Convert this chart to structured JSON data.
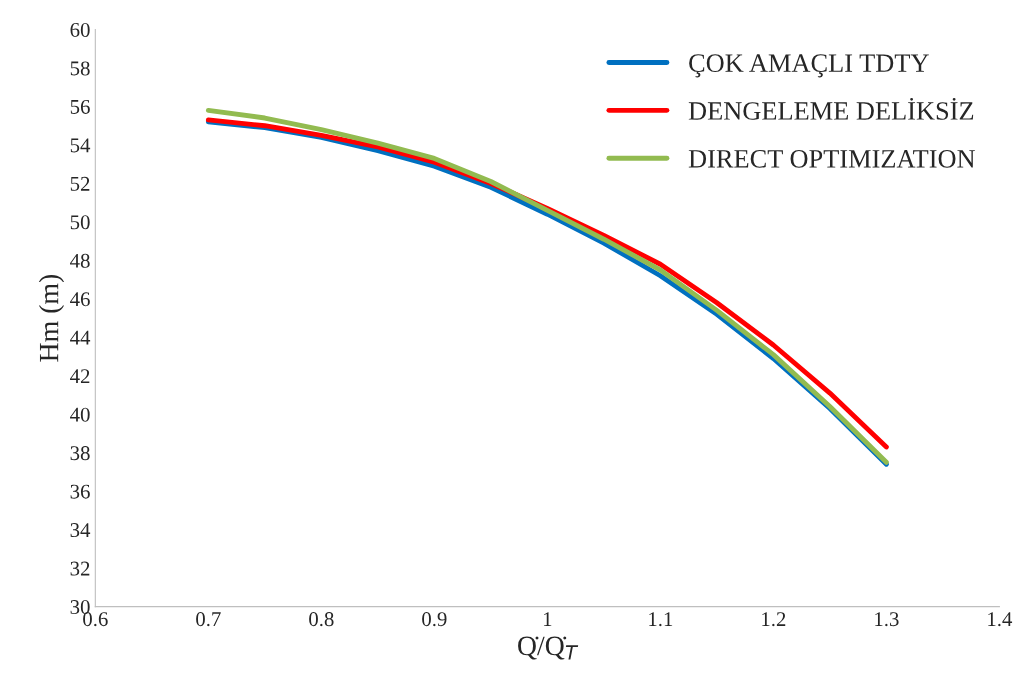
{
  "chart_data": {
    "type": "line",
    "xlabel": "Q̇/Q̇$_{T}$",
    "ylabel": "Hm (m)",
    "x": [
      0.7,
      0.75,
      0.8,
      0.85,
      0.9,
      0.95,
      1.0,
      1.05,
      1.1,
      1.15,
      1.2,
      1.25,
      1.3
    ],
    "series": [
      {
        "name": "ÇOK AMAÇLI TDTY",
        "color": "#0070c0",
        "values": [
          55.2,
          54.9,
          54.4,
          53.7,
          52.9,
          51.8,
          50.4,
          48.9,
          47.2,
          45.2,
          42.9,
          40.3,
          37.4
        ]
      },
      {
        "name": "DENGELEME DELİKSİZ",
        "color": "#ff0000",
        "values": [
          55.3,
          55.0,
          54.5,
          53.9,
          53.1,
          52.0,
          50.7,
          49.3,
          47.8,
          45.8,
          43.6,
          41.1,
          38.3
        ]
      },
      {
        "name": "DIRECT OPTIMIZATION",
        "color": "#92bb50",
        "values": [
          55.8,
          55.4,
          54.8,
          54.1,
          53.3,
          52.1,
          50.6,
          49.1,
          47.5,
          45.4,
          43.1,
          40.4,
          37.5
        ]
      }
    ],
    "xlim": [
      0.6,
      1.4
    ],
    "xticks": [
      0.6,
      0.7,
      0.8,
      0.9,
      1,
      1.1,
      1.2,
      1.3,
      1.4
    ],
    "ylim": [
      30,
      60
    ],
    "yticks": [
      30,
      32,
      34,
      36,
      38,
      40,
      42,
      44,
      46,
      48,
      50,
      52,
      54,
      56,
      58,
      60
    ],
    "grid": false,
    "legend": "top right",
    "marker": "none",
    "line_style": "solid"
  }
}
